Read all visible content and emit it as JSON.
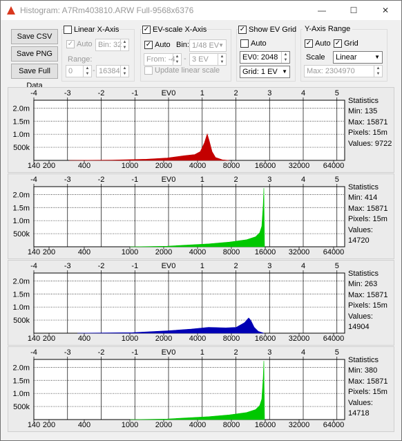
{
  "window": {
    "title": "Histogram: A7Rm403810.ARW Full-9568x6376",
    "minimize": "—",
    "maximize": "☐",
    "close": "✕"
  },
  "buttons": {
    "save_csv": "Save CSV",
    "save_png": "Save PNG",
    "save_full": "Save Full Data"
  },
  "linear_x": {
    "title": "Linear X-Axis",
    "auto": "Auto",
    "bin": "Bin: 32",
    "range_label": "Range:",
    "range_from": "0",
    "range_dash": "-",
    "range_to": "16384"
  },
  "ev_x": {
    "title": "EV-scale X-Axis",
    "auto": "Auto",
    "bin_label": "Bin:",
    "bin_value": "1/48 EV",
    "from": "From: -4",
    "dash": "-",
    "to": "3 EV",
    "update": "Update linear scale"
  },
  "ev_grid": {
    "title": "Show EV Grid",
    "auto": "Auto",
    "ev0": "EV0: 2048",
    "grid": "Grid: 1 EV"
  },
  "y_axis": {
    "title": "Y-Axis Range",
    "auto": "Auto",
    "grid": "Grid",
    "scale_label": "Scale",
    "scale_value": "Linear",
    "max": "Max: 2304970"
  },
  "colors": {
    "red": "#c40000",
    "green": "#00c800",
    "blue": "#0000b4"
  },
  "axis": {
    "ev_ticks": [
      "-4",
      "-3",
      "-2",
      "-1",
      "EV0",
      "1",
      "2",
      "3",
      "4",
      "5"
    ],
    "lin_ticks": [
      "140",
      "200",
      "400",
      "1000",
      "2000",
      "4000",
      "8000",
      "16000",
      "32000",
      "64000"
    ],
    "y_ticks": [
      "2.0m",
      "1.5m",
      "1.0m",
      "500k"
    ]
  },
  "panels": [
    {
      "channel": "red",
      "stats": {
        "title": "Statistics",
        "min": "Min: 135",
        "max": "Max: 15871",
        "pixels": "Pixels: 15m",
        "values": "Values: 9722"
      }
    },
    {
      "channel": "green",
      "stats": {
        "title": "Statistics",
        "min": "Min: 414",
        "max": "Max: 15871",
        "pixels": "Pixels: 15m",
        "values": "Values: 14720"
      }
    },
    {
      "channel": "blue",
      "stats": {
        "title": "Statistics",
        "min": "Min: 263",
        "max": "Max: 15871",
        "pixels": "Pixels: 15m",
        "values": "Values: 14904"
      }
    },
    {
      "channel": "green",
      "stats": {
        "title": "Statistics",
        "min": "Min: 380",
        "max": "Max: 15871",
        "pixels": "Pixels: 15m",
        "values": "Values: 14718"
      }
    }
  ]
}
